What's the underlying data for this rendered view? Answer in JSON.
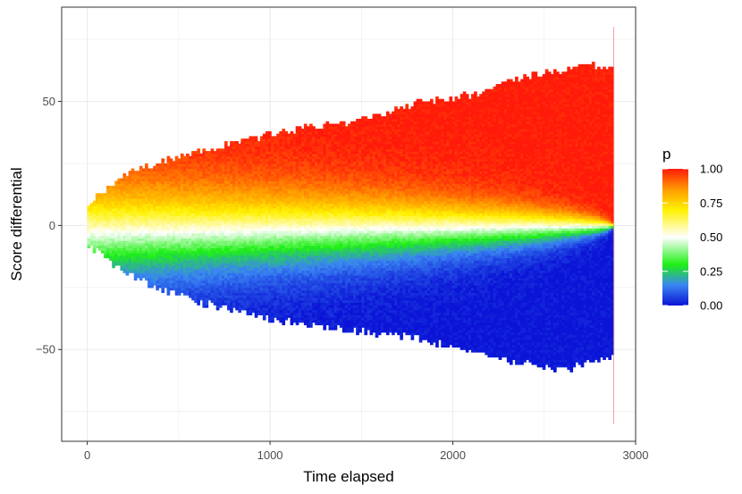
{
  "chart_data": {
    "type": "heatmap",
    "title": "",
    "xlabel": "Time elapsed",
    "ylabel": "Score differential",
    "xlim": [
      -140,
      3000
    ],
    "ylim": [
      -87,
      88
    ],
    "x_ticks": [
      0,
      1000,
      2000,
      3000
    ],
    "x_tick_labels": [
      "0",
      "1000",
      "2000",
      "3000"
    ],
    "y_ticks": [
      -50,
      0,
      50
    ],
    "y_tick_labels": [
      "−50",
      "0",
      "50"
    ],
    "grid": true,
    "legend": {
      "title": "p",
      "placement": "right",
      "ticks": [
        0.0,
        0.25,
        0.5,
        0.75,
        1.0
      ],
      "tick_labels": [
        "0.00",
        "0.25",
        "0.50",
        "0.75",
        "1.00"
      ]
    },
    "color_scale": [
      {
        "p": 0.0,
        "color": "#0b14d6"
      },
      {
        "p": 0.15,
        "color": "#3a86f2"
      },
      {
        "p": 0.3,
        "color": "#1ff014"
      },
      {
        "p": 0.5,
        "color": "#ffffff"
      },
      {
        "p": 0.7,
        "color": "#fff200"
      },
      {
        "p": 0.85,
        "color": "#ff9a00"
      },
      {
        "p": 1.0,
        "color": "#ff1a0a"
      }
    ],
    "envelope": {
      "time": [
        0,
        100,
        200,
        400,
        600,
        800,
        1000,
        1200,
        1400,
        1600,
        1800,
        2000,
        2200,
        2400,
        2600,
        2700,
        2880
      ],
      "score_max": [
        8,
        14,
        20,
        25,
        29,
        33,
        36,
        39,
        41,
        44,
        49,
        51,
        54,
        60,
        62,
        64,
        63
      ],
      "score_min": [
        -7,
        -13,
        -18,
        -25,
        -30,
        -34,
        -37,
        -39,
        -41,
        -43,
        -45,
        -48,
        -52,
        -55,
        -58,
        -55,
        -53
      ]
    },
    "game_end_time": 2880
  },
  "colors": {
    "panel_border": "#333333",
    "grid": "#ebebeb",
    "tick": "#333333"
  }
}
